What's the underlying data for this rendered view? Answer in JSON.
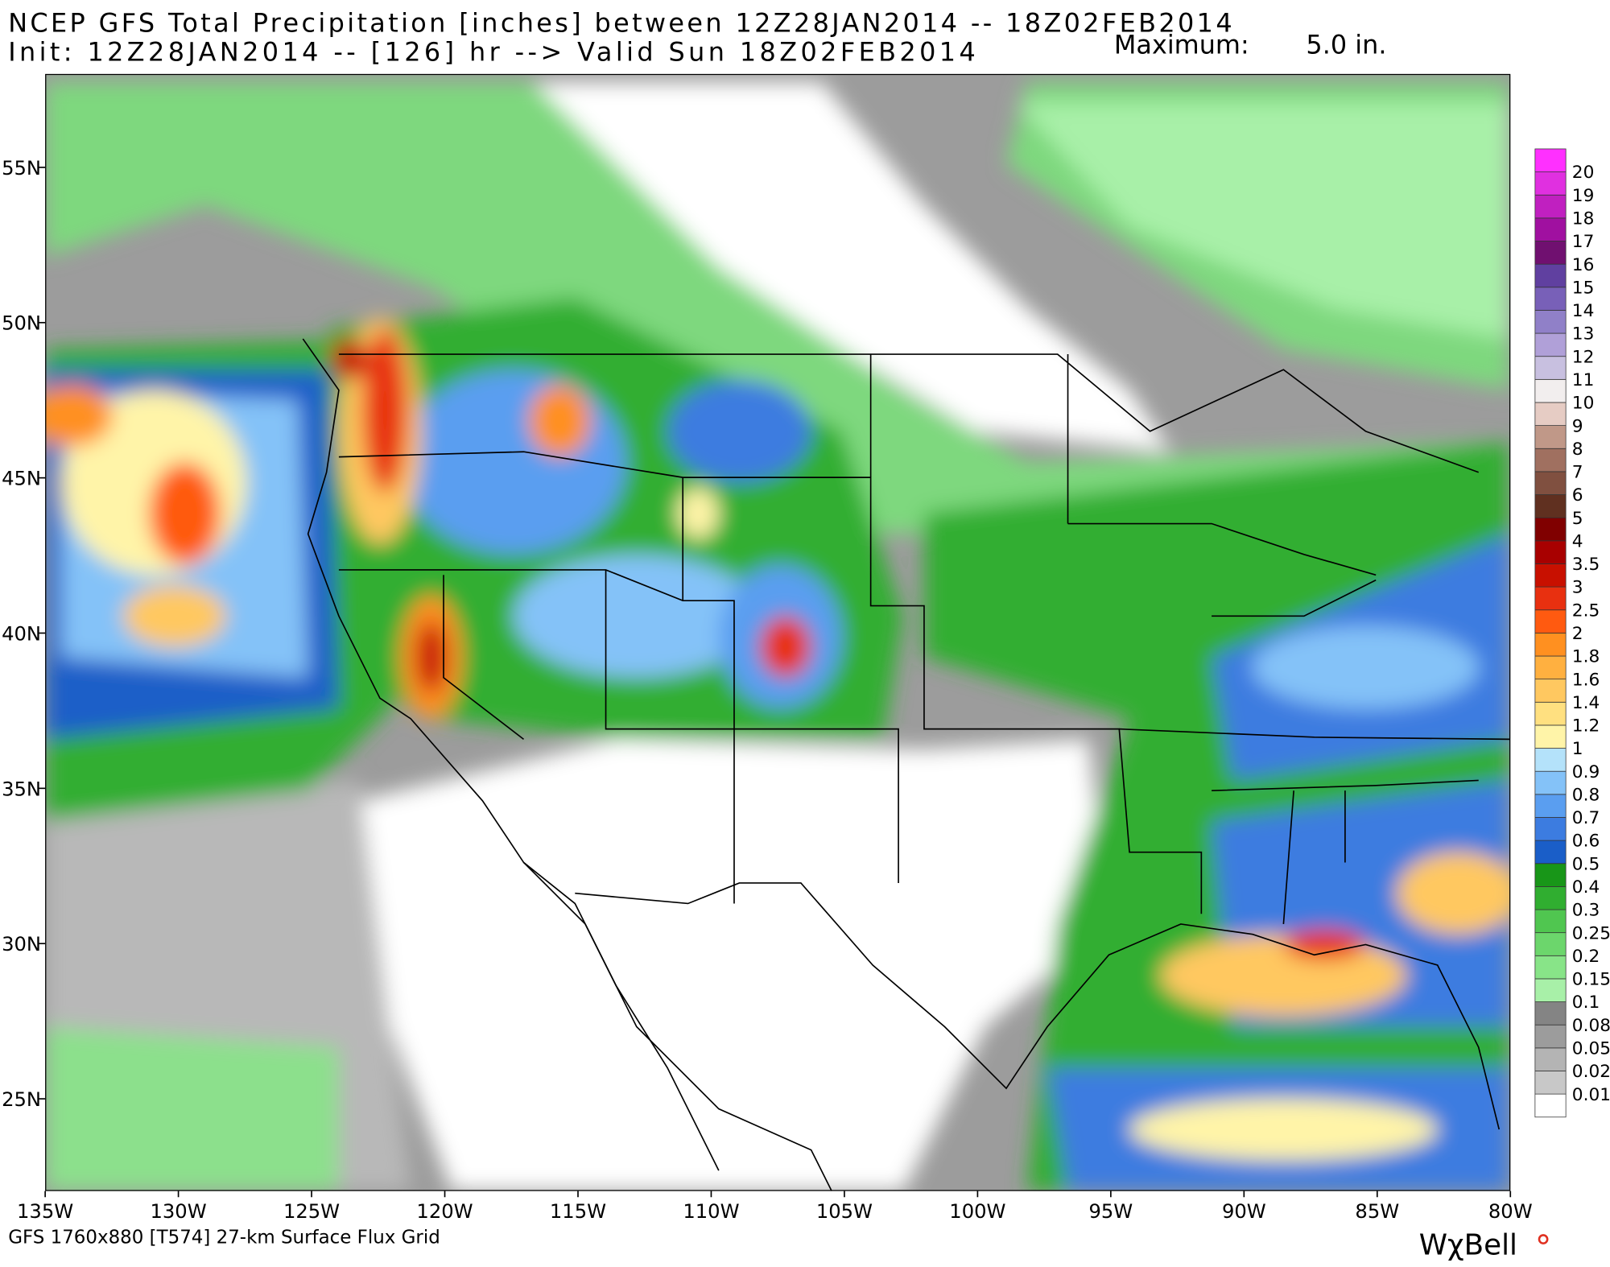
{
  "header": {
    "line1": "NCEP GFS Total Precipitation [inches] between 12Z28JAN2014 -- 18Z02FEB2014",
    "line2": "Init: 12Z28JAN2014 -- [126] hr --> Valid Sun 18Z02FEB2014",
    "maximum_label": "Maximum:",
    "maximum_value": "5.0 in."
  },
  "x_axis": {
    "labels": [
      "135W",
      "130W",
      "125W",
      "120W",
      "115W",
      "110W",
      "105W",
      "100W",
      "95W",
      "90W",
      "85W",
      "80W"
    ]
  },
  "y_axis": {
    "labels": [
      "55N",
      "50N",
      "45N",
      "40N",
      "35N",
      "30N",
      "25N"
    ]
  },
  "colorbar": {
    "labels": [
      "20",
      "19",
      "18",
      "17",
      "16",
      "15",
      "14",
      "13",
      "12",
      "11",
      "10",
      "9",
      "8",
      "7",
      "6",
      "5",
      "4",
      "3.5",
      "3",
      "2.5",
      "2",
      "1.8",
      "1.6",
      "1.4",
      "1.2",
      "1",
      "0.9",
      "0.8",
      "0.7",
      "0.6",
      "0.5",
      "0.4",
      "0.3",
      "0.25",
      "0.2",
      "0.15",
      "0.1",
      "0.08",
      "0.05",
      "0.02",
      "0.01"
    ],
    "colors": [
      "#ffffff",
      "#c8c8c8",
      "#b4b4b4",
      "#9c9c9c",
      "#848484",
      "#a8f0a8",
      "#88e488",
      "#6cd66c",
      "#50c650",
      "#30ae30",
      "#189618",
      "#1a5ec8",
      "#3c7ce0",
      "#5a9ef0",
      "#84c2f8",
      "#b4e2fa",
      "#fff4a8",
      "#ffe080",
      "#ffc860",
      "#ffb040",
      "#ff9020",
      "#ff5a10",
      "#e83010",
      "#c81000",
      "#a80000",
      "#800000",
      "#603020",
      "#805040",
      "#a07060",
      "#c09888",
      "#e6ccc4",
      "#f2eeee",
      "#c8c0e0",
      "#b0a0d8",
      "#9080c8",
      "#7860b8",
      "#6040a0",
      "#701070",
      "#a010a0",
      "#c020c0",
      "#e030e0",
      "#ff30ff"
    ]
  },
  "footer": {
    "grid": "GFS 1760x880 [T574] 27-km Surface Flux Grid",
    "logo": "WχBell"
  }
}
